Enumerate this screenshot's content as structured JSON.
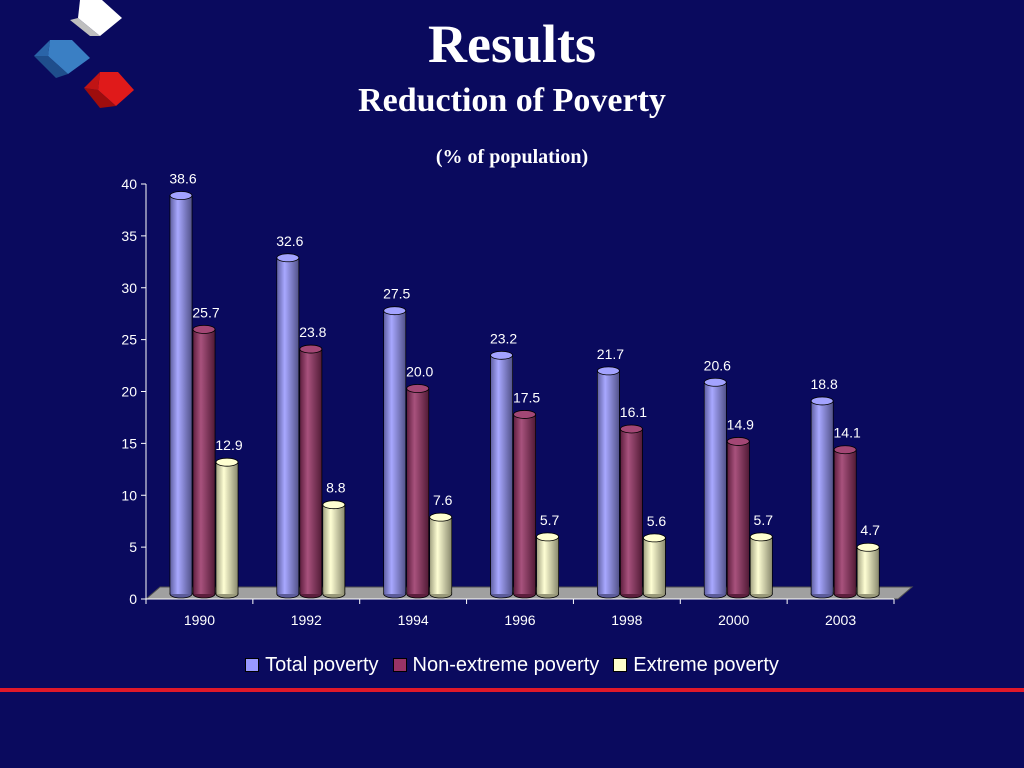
{
  "header": {
    "title": "Results",
    "subtitle": "Reduction of Poverty",
    "unit_note": "(% of population)"
  },
  "chart_data": {
    "type": "bar",
    "categories": [
      "1990",
      "1992",
      "1994",
      "1996",
      "1998",
      "2000",
      "2003"
    ],
    "series": [
      {
        "name": "Total poverty",
        "values": [
          38.6,
          32.6,
          27.5,
          23.2,
          21.7,
          20.6,
          18.8
        ],
        "labels": [
          "38.6",
          "32.6",
          "27.5",
          "23.2",
          "21.7",
          "20.6",
          "18.8"
        ],
        "color": "#9999ff"
      },
      {
        "name": "Non-extreme poverty",
        "values": [
          25.7,
          23.8,
          20.0,
          17.5,
          16.1,
          14.9,
          14.1
        ],
        "labels": [
          "25.7",
          "23.8",
          "20.0",
          "17.5",
          "16.1",
          "14.9",
          "14.1"
        ],
        "color": "#993366"
      },
      {
        "name": "Extreme poverty",
        "values": [
          12.9,
          8.8,
          7.6,
          5.7,
          5.6,
          5.7,
          4.7
        ],
        "labels": [
          "12.9",
          "8.8",
          "7.6",
          "5.7",
          "5.6",
          "5.7",
          "4.7"
        ],
        "color": "#ffffcc"
      }
    ],
    "ylim": [
      0,
      40
    ],
    "yticks": [
      "0",
      "5",
      "10",
      "15",
      "20",
      "25",
      "30",
      "35",
      "40"
    ],
    "legend_position": "bottom",
    "grid": false,
    "style": "3d-cylinder"
  },
  "decor": {
    "accent_line_color": "#e0192a",
    "background_color": "#0a0a5e"
  }
}
